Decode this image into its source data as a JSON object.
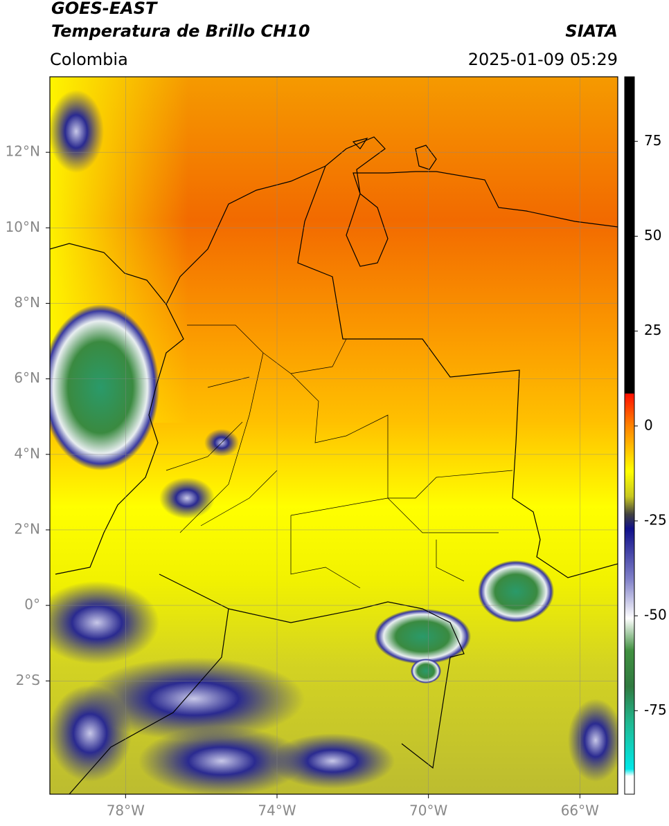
{
  "header": {
    "title": "GOES-EAST",
    "subtitle": "Temperatura de Brillo CH10",
    "source": "SIATA",
    "region": "Colombia",
    "timestamp": "2025-01-09 05:29"
  },
  "map": {
    "type": "map",
    "xlim": [
      -80,
      -65
    ],
    "ylim": [
      -5,
      14
    ],
    "xticks": [
      {
        "value": -78,
        "label": "78°W"
      },
      {
        "value": -74,
        "label": "74°W"
      },
      {
        "value": -70,
        "label": "70°W"
      },
      {
        "value": -66,
        "label": "66°W"
      }
    ],
    "yticks": [
      {
        "value": 12,
        "label": "12°N"
      },
      {
        "value": 10,
        "label": "10°N"
      },
      {
        "value": 8,
        "label": "8°N"
      },
      {
        "value": 6,
        "label": "6°N"
      },
      {
        "value": 4,
        "label": "4°N"
      },
      {
        "value": 2,
        "label": "2°N"
      },
      {
        "value": 0,
        "label": "0°"
      },
      {
        "value": -2,
        "label": "2°S"
      }
    ],
    "grid": true
  },
  "colorbar": {
    "lim": [
      -97,
      92
    ],
    "ticks": [
      75,
      50,
      25,
      0,
      -25,
      -50,
      -75
    ]
  }
}
